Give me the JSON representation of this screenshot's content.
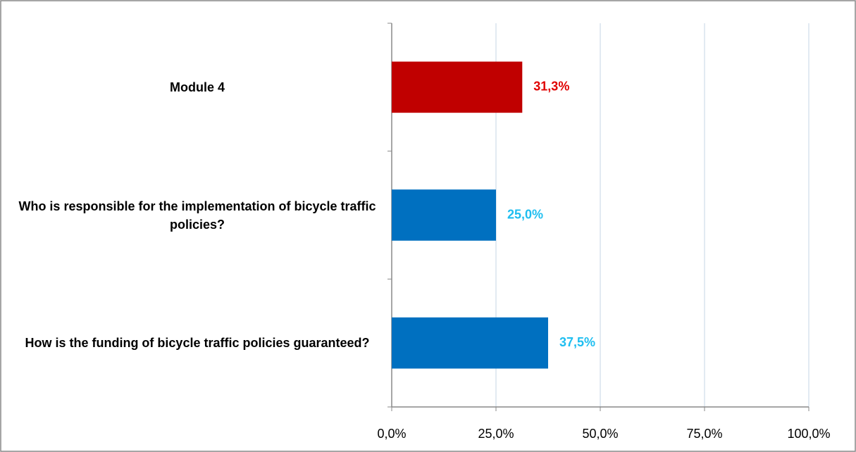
{
  "chart_data": {
    "type": "barh",
    "categories": [
      "Module 4",
      "Who is responsible for the implementation of bicycle traffic policies?",
      "How is the funding of bicycle traffic policies guaranteed?"
    ],
    "values": [
      31.3,
      25.0,
      37.5
    ],
    "value_labels": [
      "31,3%",
      "25,0%",
      "37,5%"
    ],
    "colors": [
      "#c00000",
      "#0070c0",
      "#0070c0"
    ],
    "label_colors": [
      "#e00000",
      "#1ebef0",
      "#1ebef0"
    ],
    "xlim": [
      0,
      100
    ],
    "xticks": [
      {
        "value": 0,
        "label": "0,0%"
      },
      {
        "value": 25,
        "label": "25,0%"
      },
      {
        "value": 50,
        "label": "50,0%"
      },
      {
        "value": 75,
        "label": "75,0%"
      },
      {
        "value": 100,
        "label": "100,0%"
      }
    ],
    "grid": true
  }
}
